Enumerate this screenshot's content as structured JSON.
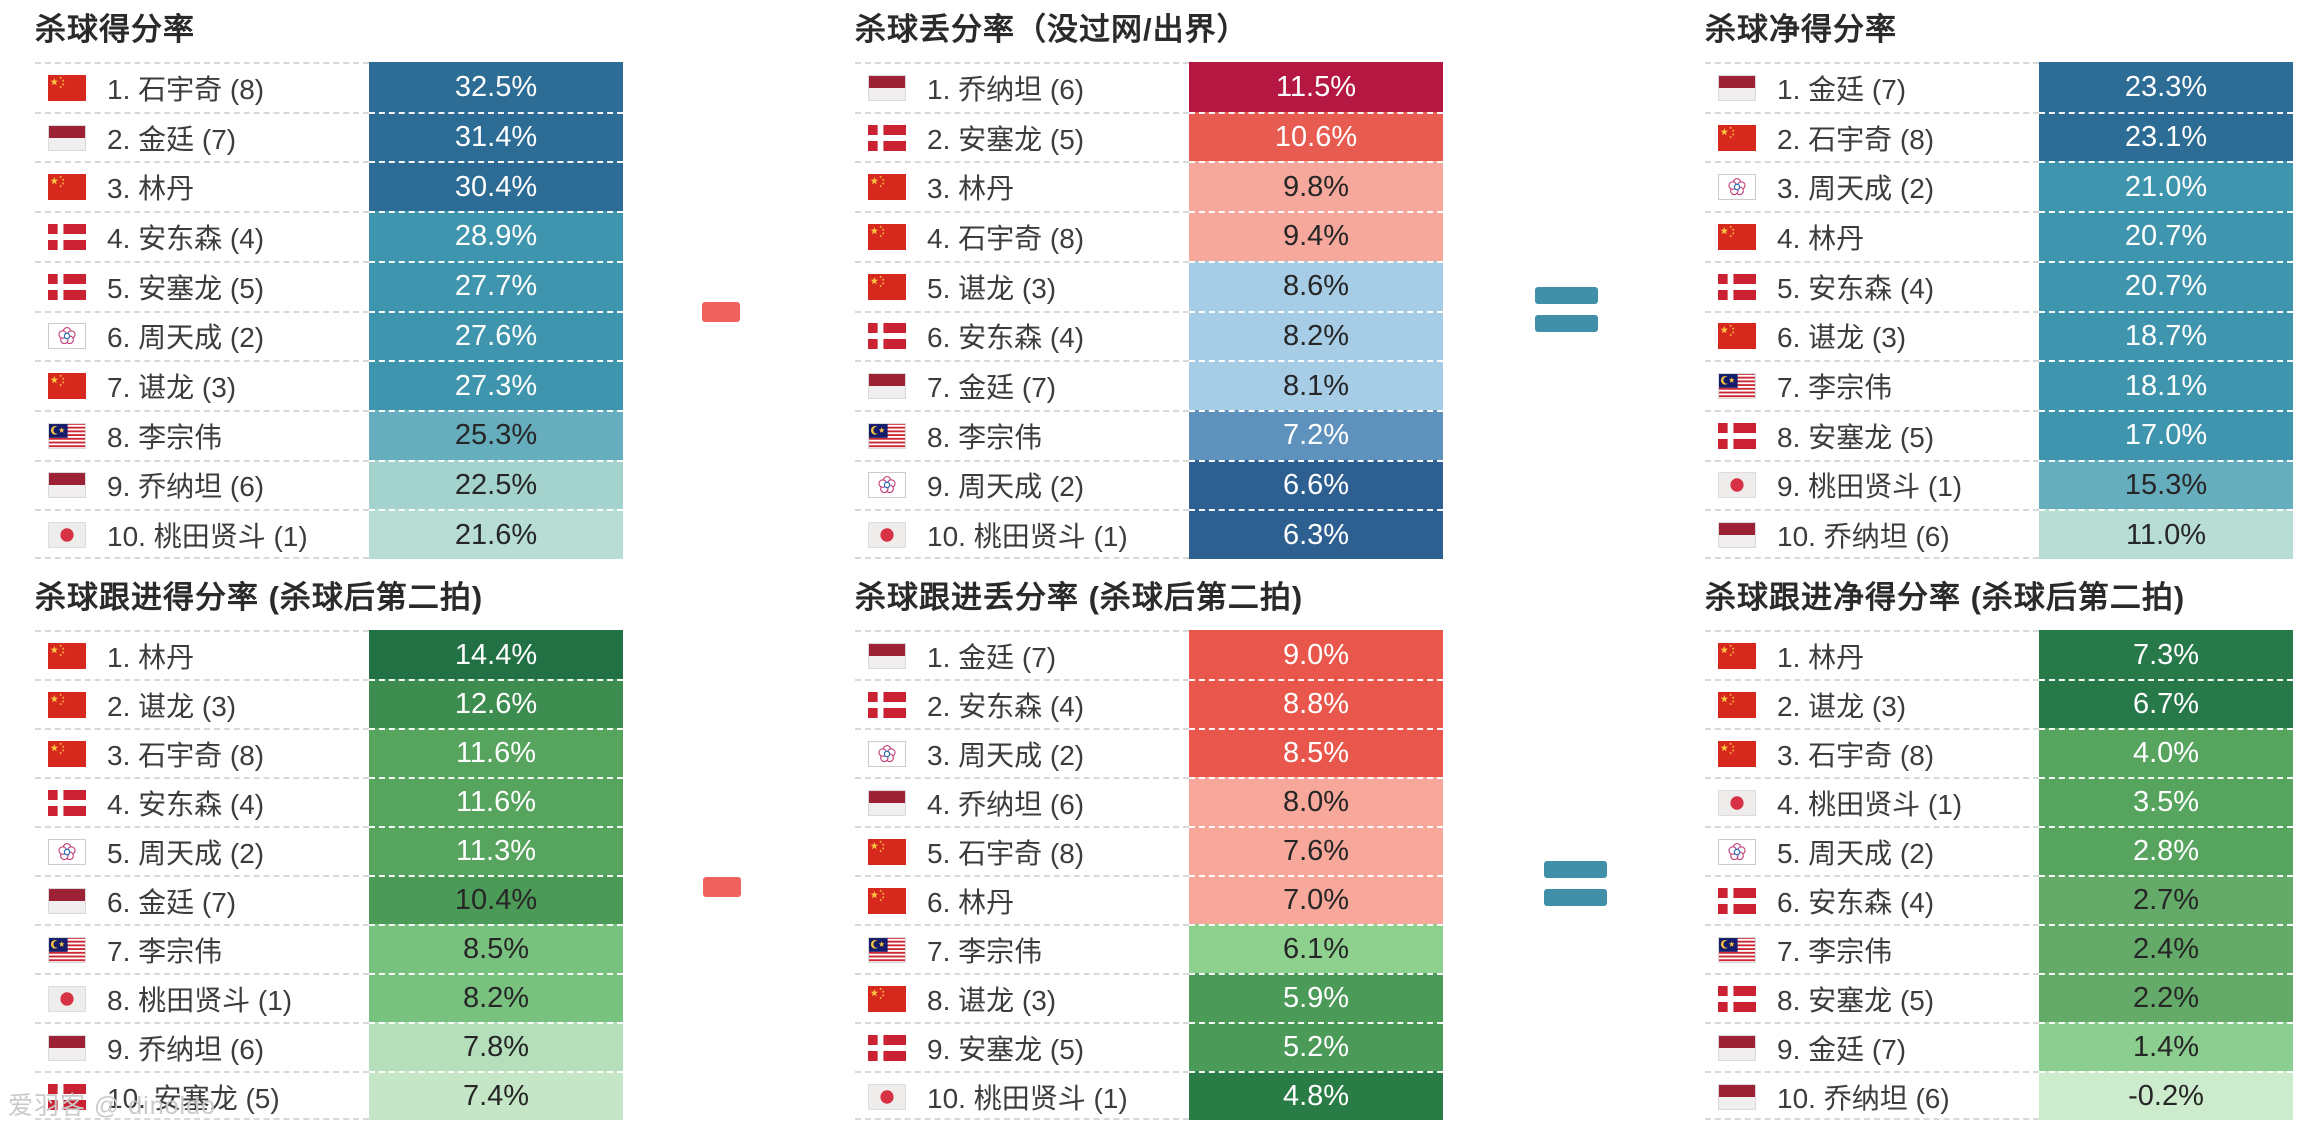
{
  "watermark": "爱羽客 @ dinoldo",
  "operators": {
    "minus_symbol": "-",
    "equals_symbol": "=",
    "minus_color": "#ef625d",
    "equals_color": "#4090aa"
  },
  "chart_data": [
    {
      "type": "bar",
      "title": "杀球得分率",
      "unit": "%",
      "categories": [
        "1. 石宇奇 (8)",
        "2. 金廷 (7)",
        "3. 林丹",
        "4. 安东森 (4)",
        "5. 安塞龙 (5)",
        "6. 周天成 (2)",
        "7. 谌龙 (3)",
        "8. 李宗伟",
        "9. 乔纳坦 (6)",
        "10. 桃田贤斗 (1)"
      ],
      "flags": [
        "china",
        "indonesia",
        "china",
        "denmark",
        "denmark",
        "chinese-taipei",
        "china",
        "malaysia",
        "indonesia",
        "japan"
      ],
      "values": [
        32.5,
        31.4,
        30.4,
        28.9,
        27.7,
        27.6,
        27.3,
        25.3,
        22.5,
        21.6
      ],
      "value_labels": [
        "32.5%",
        "31.4%",
        "30.4%",
        "28.9%",
        "27.7%",
        "27.6%",
        "27.3%",
        "25.3%",
        "22.5%",
        "21.6%"
      ],
      "bar_colors": [
        "#2c6c95",
        "#2c6c95",
        "#2c6c95",
        "#3f95ad",
        "#3f95ad",
        "#3f95ad",
        "#3f95ad",
        "#66aebd",
        "#a4d3cd",
        "#b7ddd5"
      ],
      "text_colors": [
        "light",
        "light",
        "light",
        "light",
        "light",
        "light",
        "light",
        "dark",
        "dark",
        "dark"
      ]
    },
    {
      "type": "bar",
      "title": "杀球丢分率（没过网/出界）",
      "unit": "%",
      "categories": [
        "1. 乔纳坦 (6)",
        "2. 安塞龙 (5)",
        "3. 林丹",
        "4. 石宇奇 (8)",
        "5. 谌龙 (3)",
        "6. 安东森 (4)",
        "7. 金廷 (7)",
        "8. 李宗伟",
        "9. 周天成 (2)",
        "10. 桃田贤斗 (1)"
      ],
      "flags": [
        "indonesia",
        "denmark",
        "china",
        "china",
        "china",
        "denmark",
        "indonesia",
        "malaysia",
        "chinese-taipei",
        "japan"
      ],
      "values": [
        11.5,
        10.6,
        9.8,
        9.4,
        8.6,
        8.2,
        8.1,
        7.2,
        6.6,
        6.3
      ],
      "value_labels": [
        "11.5%",
        "10.6%",
        "9.8%",
        "9.4%",
        "8.6%",
        "8.2%",
        "8.1%",
        "7.2%",
        "6.6%",
        "6.3%"
      ],
      "bar_colors": [
        "#b51743",
        "#e85b50",
        "#f6a89c",
        "#f6a89c",
        "#a7cce6",
        "#a7cce6",
        "#a7cce6",
        "#5e92bd",
        "#2d6090",
        "#2d6090"
      ],
      "text_colors": [
        "light",
        "light",
        "dark",
        "dark",
        "dark",
        "dark",
        "dark",
        "light",
        "light",
        "light"
      ]
    },
    {
      "type": "bar",
      "title": "杀球净得分率",
      "unit": "%",
      "categories": [
        "1. 金廷 (7)",
        "2. 石宇奇 (8)",
        "3. 周天成 (2)",
        "4. 林丹",
        "5. 安东森 (4)",
        "6. 谌龙 (3)",
        "7. 李宗伟",
        "8. 安塞龙 (5)",
        "9. 桃田贤斗 (1)",
        "10. 乔纳坦 (6)"
      ],
      "flags": [
        "indonesia",
        "china",
        "chinese-taipei",
        "china",
        "denmark",
        "china",
        "malaysia",
        "denmark",
        "japan",
        "indonesia"
      ],
      "values": [
        23.3,
        23.1,
        21.0,
        20.7,
        20.7,
        18.7,
        18.1,
        17.0,
        15.3,
        11.0
      ],
      "value_labels": [
        "23.3%",
        "23.1%",
        "21.0%",
        "20.7%",
        "20.7%",
        "18.7%",
        "18.1%",
        "17.0%",
        "15.3%",
        "11.0%"
      ],
      "bar_colors": [
        "#2c6c95",
        "#2c6c95",
        "#3f95ad",
        "#3f95ad",
        "#3f95ad",
        "#3f95ad",
        "#3f95ad",
        "#3f95ad",
        "#66aebd",
        "#b7ddd5"
      ],
      "text_colors": [
        "light",
        "light",
        "light",
        "light",
        "light",
        "light",
        "light",
        "light",
        "dark",
        "dark"
      ]
    },
    {
      "type": "bar",
      "title": "杀球跟进得分率 (杀球后第二拍)",
      "unit": "%",
      "categories": [
        "1. 林丹",
        "2. 谌龙 (3)",
        "3. 石宇奇 (8)",
        "4. 安东森 (4)",
        "5. 周天成 (2)",
        "6. 金廷 (7)",
        "7. 李宗伟",
        "8. 桃田贤斗 (1)",
        "9. 乔纳坦 (6)",
        "10. 安塞龙 (5)"
      ],
      "flags": [
        "china",
        "china",
        "china",
        "denmark",
        "chinese-taipei",
        "indonesia",
        "malaysia",
        "japan",
        "indonesia",
        "denmark"
      ],
      "values": [
        14.4,
        12.6,
        11.6,
        11.6,
        11.3,
        10.4,
        8.5,
        8.2,
        7.8,
        7.4
      ],
      "value_labels": [
        "14.4%",
        "12.6%",
        "11.6%",
        "11.6%",
        "11.3%",
        "10.4%",
        "8.5%",
        "8.2%",
        "7.8%",
        "7.4%"
      ],
      "bar_colors": [
        "#217145",
        "#3d8c50",
        "#57a45f",
        "#57a45f",
        "#57a45f",
        "#4c9a58",
        "#79c17f",
        "#79c17f",
        "#b5deba",
        "#c5e6c7"
      ],
      "text_colors": [
        "light",
        "light",
        "light",
        "light",
        "light",
        "dark",
        "dark",
        "dark",
        "dark",
        "dark"
      ]
    },
    {
      "type": "bar",
      "title": "杀球跟进丢分率 (杀球后第二拍)",
      "unit": "%",
      "categories": [
        "1. 金廷 (7)",
        "2. 安东森 (4)",
        "3. 周天成 (2)",
        "4. 乔纳坦 (6)",
        "5. 石宇奇 (8)",
        "6. 林丹",
        "7. 李宗伟",
        "8. 谌龙 (3)",
        "9. 安塞龙  (5)",
        "10. 桃田贤斗 (1)"
      ],
      "flags": [
        "indonesia",
        "denmark",
        "chinese-taipei",
        "indonesia",
        "china",
        "china",
        "malaysia",
        "china",
        "denmark",
        "japan"
      ],
      "values": [
        9.0,
        8.8,
        8.5,
        8.0,
        7.6,
        7.0,
        6.1,
        5.9,
        5.2,
        4.8
      ],
      "value_labels": [
        "9.0%",
        "8.8%",
        "8.5%",
        "8.0%",
        "7.6%",
        "7.0%",
        "6.1%",
        "5.9%",
        "5.2%",
        "4.8%"
      ],
      "bar_colors": [
        "#e8564c",
        "#e8564c",
        "#e8564c",
        "#f8a89b",
        "#f8a89b",
        "#f8a89b",
        "#8ed18f",
        "#4c9a58",
        "#4c9a58",
        "#2a7c46"
      ],
      "text_colors": [
        "light",
        "light",
        "light",
        "dark",
        "dark",
        "dark",
        "dark",
        "light",
        "light",
        "light"
      ]
    },
    {
      "type": "bar",
      "title": "杀球跟进净得分率 (杀球后第二拍)",
      "unit": "%",
      "categories": [
        "1. 林丹",
        "2. 谌龙 (3)",
        "3. 石宇奇 (8)",
        "4. 桃田贤斗 (1)",
        "5. 周天成 (2)",
        "6. 安东森 (4)",
        "7. 李宗伟",
        "8. 安塞龙 (5)",
        "9. 金廷 (7)",
        "10. 乔纳坦 (6)"
      ],
      "flags": [
        "china",
        "china",
        "china",
        "japan",
        "chinese-taipei",
        "denmark",
        "malaysia",
        "denmark",
        "indonesia",
        "indonesia"
      ],
      "values": [
        7.3,
        6.7,
        4.0,
        3.5,
        2.8,
        2.7,
        2.4,
        2.2,
        1.4,
        -0.2
      ],
      "value_labels": [
        "7.3%",
        "6.7%",
        "4.0%",
        "3.5%",
        "2.8%",
        "2.7%",
        "2.4%",
        "2.2%",
        "1.4%",
        "-0.2%"
      ],
      "bar_colors": [
        "#27794a",
        "#27794a",
        "#57a45f",
        "#57a45f",
        "#57a45f",
        "#64ab6a",
        "#64ab6a",
        "#64ab6a",
        "#8ccd90",
        "#cdeccd"
      ],
      "text_colors": [
        "light",
        "light",
        "light",
        "light",
        "light",
        "dark",
        "dark",
        "dark",
        "dark",
        "dark"
      ]
    }
  ]
}
